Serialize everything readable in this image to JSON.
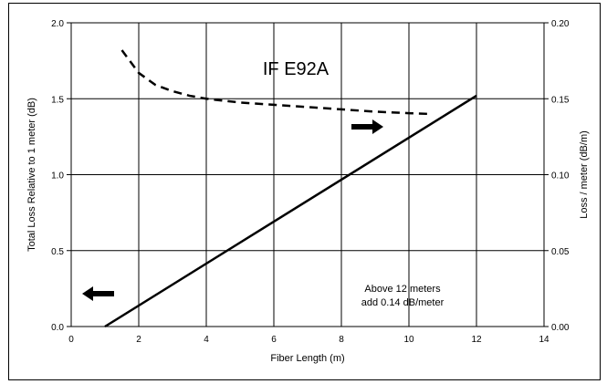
{
  "chart_data": {
    "type": "line",
    "title": "IF E92A",
    "xlabel": "Fiber Length (m)",
    "ylabel_left": "Total Loss Relative to 1 meter (dB)",
    "ylabel_right": "Loss / meter (dB/m)",
    "xlim": [
      0,
      14
    ],
    "ylim_left": [
      0,
      2.0
    ],
    "ylim_right": [
      0,
      0.2
    ],
    "grid": true,
    "x_ticks": [
      "0",
      "2",
      "4",
      "6",
      "8",
      "10",
      "12",
      "14"
    ],
    "y_left_ticks": [
      "0.0",
      "0.5",
      "1.0",
      "1.5",
      "2.0"
    ],
    "y_right_ticks": [
      "0.00",
      "0.05",
      "0.10",
      "0.15",
      "0.20"
    ],
    "series": [
      {
        "axis": "left",
        "style": "solid",
        "x": [
          1.0,
          12.0
        ],
        "y": [
          0.0,
          1.52
        ]
      },
      {
        "axis": "right",
        "style": "dashed",
        "x": [
          1.5,
          2.0,
          2.5,
          3.0,
          3.5,
          4.0,
          5.0,
          6.0,
          7.0,
          8.0,
          9.0,
          10.0,
          10.6
        ],
        "y": [
          0.182,
          0.167,
          0.159,
          0.155,
          0.152,
          0.15,
          0.1475,
          0.146,
          0.1445,
          0.143,
          0.1415,
          0.1405,
          0.14
        ]
      }
    ],
    "annotation_line1": "Above 12 meters",
    "annotation_line2": "add 0.14 dB/meter"
  }
}
